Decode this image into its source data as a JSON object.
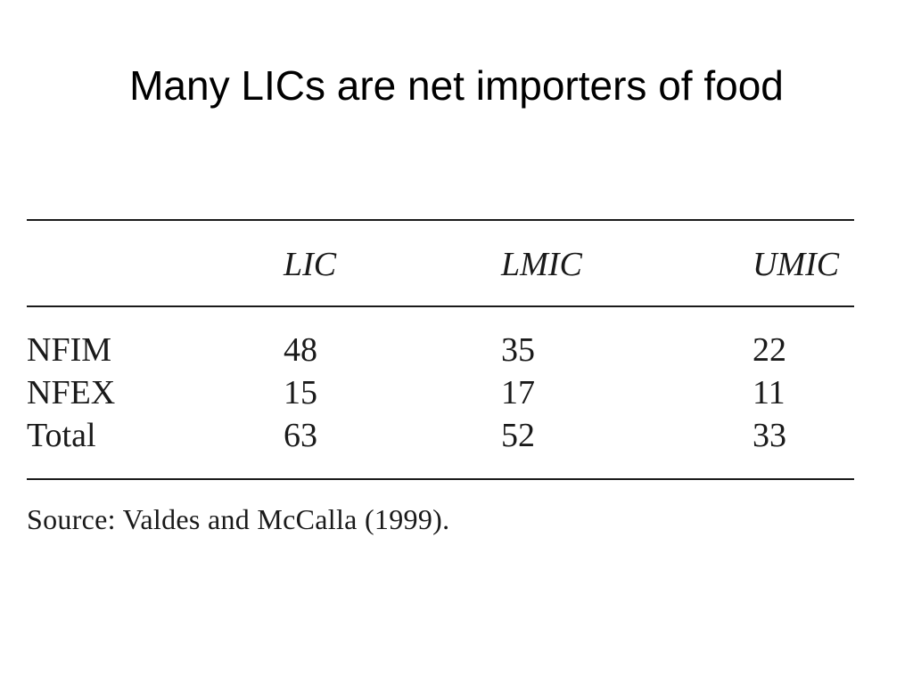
{
  "slide": {
    "title": "Many LICs are net importers of food"
  },
  "table": {
    "columns": [
      "",
      "LIC",
      "LMIC",
      "UMIC"
    ],
    "rows": [
      {
        "label": "NFIM",
        "values": [
          "48",
          "35",
          "22"
        ]
      },
      {
        "label": "NFEX",
        "values": [
          "15",
          "17",
          "11"
        ]
      },
      {
        "label": "Total",
        "values": [
          "63",
          "52",
          "33"
        ]
      }
    ],
    "source": "Source: Valdes and McCalla (1999)."
  }
}
